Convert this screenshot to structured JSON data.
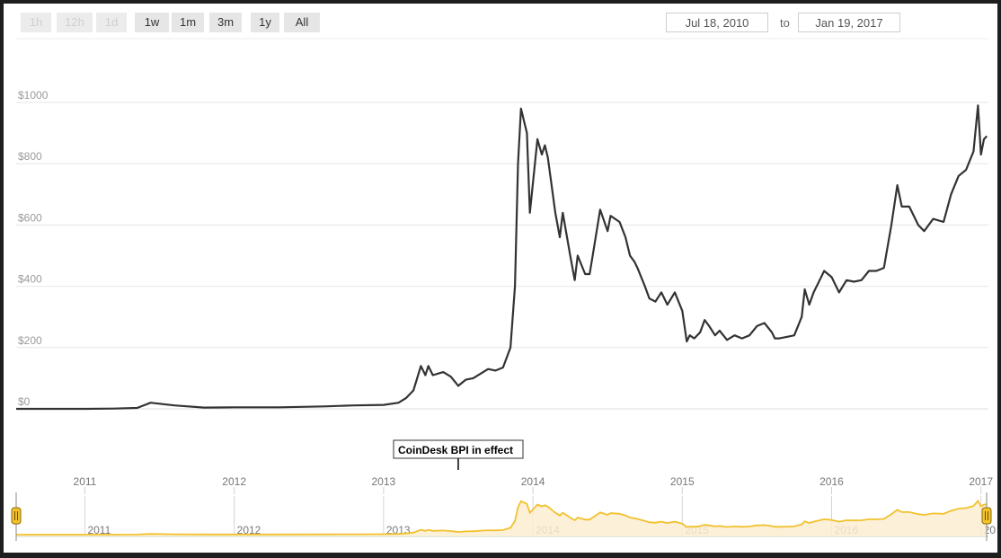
{
  "toolbar": {
    "ranges": [
      {
        "label": "1h",
        "enabled": false
      },
      {
        "label": "12h",
        "enabled": false
      },
      {
        "label": "1d",
        "enabled": false
      },
      {
        "label": "1w",
        "enabled": true
      },
      {
        "label": "1m",
        "enabled": true
      },
      {
        "label": "3m",
        "enabled": true
      },
      {
        "label": "1y",
        "enabled": true
      },
      {
        "label": "All",
        "enabled": true
      }
    ],
    "from_date": "Jul 18, 2010",
    "to_label": "to",
    "to_date": "Jan 19, 2017"
  },
  "chart_data": {
    "type": "line",
    "title": "",
    "xlabel": "",
    "ylabel": "",
    "y_ticks": [
      "$0",
      "$200",
      "$400",
      "$600",
      "$800",
      "$1000"
    ],
    "y_tick_values": [
      0,
      200,
      400,
      600,
      800,
      1000
    ],
    "ylim": [
      0,
      1000
    ],
    "xlim": [
      2010.54,
      2017.05
    ],
    "x_ticks": [
      "2011",
      "2012",
      "2013",
      "2014",
      "2015",
      "2016",
      "2017"
    ],
    "x_tick_values": [
      2011,
      2012,
      2013,
      2014,
      2015,
      2016,
      2017
    ],
    "grid": true,
    "line_color": "#333333",
    "annotation": "CoinDesk BPI in effect",
    "annotation_x": 2013.5,
    "series": [
      {
        "x": [
          2010.54,
          2010.8,
          2011.0,
          2011.2,
          2011.35,
          2011.44,
          2011.6,
          2011.8,
          2012.0,
          2012.3,
          2012.6,
          2012.8,
          2013.0,
          2013.1,
          2013.15,
          2013.2,
          2013.25,
          2013.28,
          2013.3,
          2013.33,
          2013.4,
          2013.45,
          2013.5,
          2013.55,
          2013.6,
          2013.7,
          2013.75,
          2013.8,
          2013.85,
          2013.88,
          2013.9,
          2013.92,
          2013.96,
          2013.98,
          2014.03,
          2014.06,
          2014.08,
          2014.1,
          2014.15,
          2014.18,
          2014.2,
          2014.25,
          2014.28,
          2014.3,
          2014.35,
          2014.38,
          2014.4,
          2014.45,
          2014.5,
          2014.52,
          2014.58,
          2014.62,
          2014.65,
          2014.68,
          2014.7,
          2014.75,
          2014.78,
          2014.82,
          2014.86,
          2014.9,
          2014.95,
          2015.0,
          2015.03,
          2015.05,
          2015.08,
          2015.12,
          2015.15,
          2015.18,
          2015.22,
          2015.25,
          2015.3,
          2015.35,
          2015.4,
          2015.45,
          2015.5,
          2015.55,
          2015.6,
          2015.62,
          2015.65,
          2015.7,
          2015.75,
          2015.8,
          2015.82,
          2015.85,
          2015.88,
          2015.92,
          2015.95,
          2016.0,
          2016.05,
          2016.1,
          2016.15,
          2016.2,
          2016.25,
          2016.3,
          2016.35,
          2016.4,
          2016.44,
          2016.47,
          2016.52,
          2016.58,
          2016.62,
          2016.68,
          2016.75,
          2016.8,
          2016.85,
          2016.9,
          2016.95,
          2016.98,
          2017.0,
          2017.02,
          2017.04
        ],
        "y": [
          0,
          0,
          0,
          1,
          3,
          20,
          11,
          4,
          5,
          5,
          8,
          11,
          13,
          20,
          35,
          60,
          140,
          110,
          140,
          110,
          120,
          105,
          75,
          95,
          100,
          130,
          125,
          135,
          200,
          400,
          800,
          980,
          900,
          640,
          880,
          830,
          860,
          820,
          640,
          560,
          640,
          500,
          420,
          500,
          440,
          440,
          500,
          650,
          580,
          630,
          610,
          560,
          500,
          480,
          460,
          400,
          360,
          350,
          380,
          340,
          380,
          320,
          220,
          240,
          230,
          250,
          290,
          270,
          240,
          255,
          225,
          240,
          230,
          240,
          270,
          280,
          250,
          230,
          230,
          235,
          240,
          300,
          390,
          340,
          380,
          420,
          450,
          430,
          380,
          420,
          415,
          420,
          450,
          450,
          460,
          600,
          730,
          660,
          660,
          600,
          580,
          620,
          610,
          700,
          760,
          780,
          840,
          990,
          830,
          880,
          890
        ]
      }
    ]
  },
  "navigator": {
    "year_labels": [
      "2011",
      "2012",
      "2013",
      "2014",
      "2015",
      "2016",
      "20"
    ],
    "line_color": "#f2c12e",
    "fill_color": "#fbeed1"
  }
}
